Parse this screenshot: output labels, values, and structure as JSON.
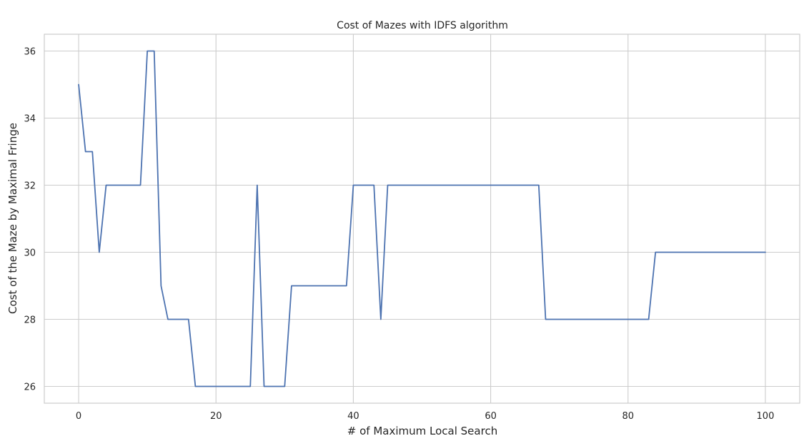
{
  "chart_data": {
    "type": "line",
    "title": "Cost of Mazes with IDFS algorithm",
    "xlabel": "# of Maximum Local Search",
    "ylabel": "Cost of the Maze by Maximal Fringe",
    "xlim": [
      -5,
      105
    ],
    "ylim": [
      25.5,
      36.5
    ],
    "x_ticks": [
      0,
      20,
      40,
      60,
      80,
      100
    ],
    "y_ticks": [
      26,
      28,
      30,
      32,
      34,
      36
    ],
    "grid": true,
    "line_color": "#4c72b0",
    "grid_color": "#cccccc",
    "series": [
      {
        "x": [
          0,
          1,
          2,
          3,
          4,
          5,
          6,
          7,
          8,
          9,
          10,
          11,
          12,
          13,
          14,
          15,
          16,
          17,
          18,
          19,
          20,
          21,
          22,
          23,
          24,
          25,
          26,
          27,
          28,
          29,
          30,
          31,
          32,
          33,
          34,
          35,
          36,
          37,
          38,
          39,
          40,
          41,
          42,
          43,
          44,
          45,
          46,
          47,
          48,
          49,
          50,
          51,
          52,
          53,
          54,
          55,
          56,
          57,
          58,
          59,
          60,
          61,
          62,
          63,
          64,
          65,
          66,
          67,
          68,
          69,
          70,
          71,
          72,
          73,
          74,
          75,
          76,
          77,
          78,
          79,
          80,
          81,
          82,
          83,
          84,
          85,
          86,
          87,
          88,
          89,
          90,
          91,
          92,
          93,
          94,
          95,
          96,
          97,
          98,
          99,
          100
        ],
        "values": [
          35,
          33,
          33,
          30,
          32,
          32,
          32,
          32,
          32,
          32,
          36,
          36,
          29,
          28,
          28,
          28,
          28,
          26,
          26,
          26,
          26,
          26,
          26,
          26,
          26,
          26,
          32,
          26,
          26,
          26,
          26,
          29,
          29,
          29,
          29,
          29,
          29,
          29,
          29,
          29,
          32,
          32,
          32,
          32,
          28,
          32,
          32,
          32,
          32,
          32,
          32,
          32,
          32,
          32,
          32,
          32,
          32,
          32,
          32,
          32,
          32,
          32,
          32,
          32,
          32,
          32,
          32,
          32,
          28,
          28,
          28,
          28,
          28,
          28,
          28,
          28,
          28,
          28,
          28,
          28,
          28,
          28,
          28,
          28,
          30,
          30,
          30,
          30,
          30,
          30,
          30,
          30,
          30,
          30,
          30,
          30,
          30,
          30,
          30,
          30,
          30
        ]
      }
    ]
  }
}
